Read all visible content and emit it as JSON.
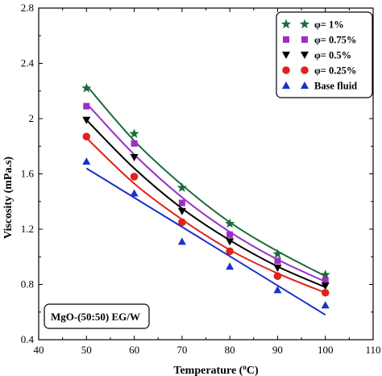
{
  "chart_data": {
    "type": "scatter",
    "xlabel": "Temperature (",
    "xlabel_sup": "o",
    "xlabel_unit": "C)",
    "ylabel": "Viscosity (mPa.s)",
    "xlim": [
      40,
      110
    ],
    "ylim": [
      0.4,
      2.8
    ],
    "xticks": [
      40,
      50,
      60,
      70,
      80,
      90,
      100,
      110
    ],
    "yticks": [
      0.4,
      0.8,
      1.2,
      1.6,
      2,
      2.4,
      2.8
    ],
    "ytick_labels": [
      "0.4",
      "0.8",
      "1.2",
      "1.6",
      "2",
      "2.4",
      "2.8"
    ],
    "annotation": "MgO-(50:50) EG/W",
    "legend_position": "top-right",
    "x": [
      50,
      60,
      70,
      80,
      90,
      100
    ],
    "series": [
      {
        "name": "φ= 1%",
        "marker": "star",
        "color": "#1e6b3c",
        "values": [
          2.22,
          1.89,
          1.5,
          1.24,
          1.02,
          0.87
        ],
        "fit": [
          2.24,
          1.84,
          1.52,
          1.25,
          1.04,
          0.86
        ]
      },
      {
        "name": "φ= 0.75%",
        "marker": "square",
        "color": "#9b2fc4",
        "values": [
          2.09,
          1.82,
          1.39,
          1.16,
          0.97,
          0.83
        ],
        "fit": [
          2.11,
          1.74,
          1.43,
          1.18,
          0.98,
          0.82
        ]
      },
      {
        "name": "φ= 0.5%",
        "marker": "triangle-down",
        "color": "#000000",
        "values": [
          1.99,
          1.72,
          1.33,
          1.11,
          0.92,
          0.79
        ],
        "fit": [
          1.99,
          1.64,
          1.35,
          1.12,
          0.93,
          0.78
        ]
      },
      {
        "name": "φ= 0.25%",
        "marker": "circle",
        "color": "#e0231b",
        "values": [
          1.87,
          1.58,
          1.25,
          1.04,
          0.86,
          0.74
        ],
        "fit": [
          1.86,
          1.53,
          1.27,
          1.05,
          0.88,
          0.74
        ]
      },
      {
        "name": "Base fluid",
        "marker": "triangle-up",
        "color": "#1a30c8",
        "values": [
          1.69,
          1.46,
          1.11,
          0.93,
          0.76,
          0.65
        ],
        "fit": [
          1.64,
          1.43,
          1.22,
          1.0,
          0.79,
          0.58
        ]
      }
    ]
  }
}
